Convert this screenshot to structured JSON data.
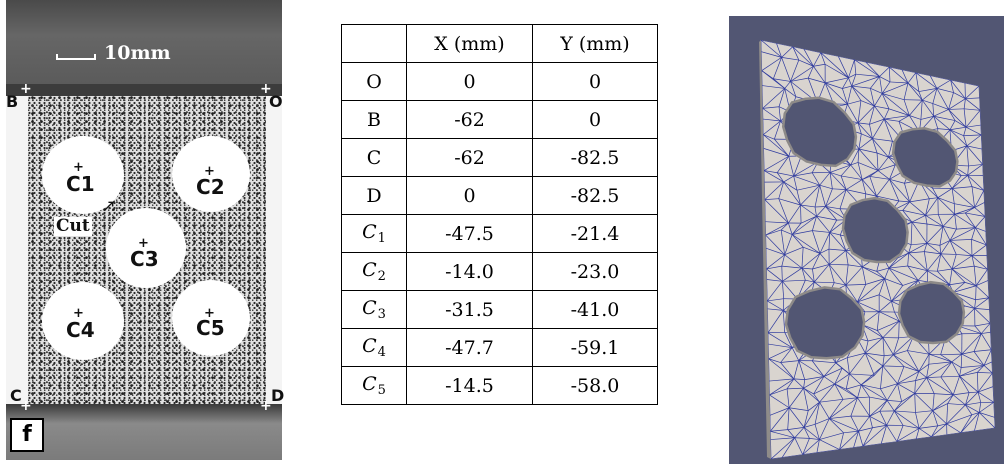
{
  "specimen_photo": {
    "scale_label": "10mm",
    "cut_label": "Cut",
    "panel_label": "f",
    "corners": [
      "B",
      "O",
      "C",
      "D"
    ],
    "holes": [
      {
        "letter": "C",
        "index": "1"
      },
      {
        "letter": "C",
        "index": "2"
      },
      {
        "letter": "C",
        "index": "3"
      },
      {
        "letter": "C",
        "index": "4"
      },
      {
        "letter": "C",
        "index": "5"
      }
    ]
  },
  "coordinate_table": {
    "headers": [
      "",
      "X (mm)",
      "Y (mm)"
    ],
    "rows": [
      {
        "point": "O",
        "index": "",
        "x": "0",
        "y": "0"
      },
      {
        "point": "B",
        "index": "",
        "x": "-62",
        "y": "0"
      },
      {
        "point": "C",
        "index": "",
        "x": "-62",
        "y": "-82.5"
      },
      {
        "point": "D",
        "index": "",
        "x": "0",
        "y": "-82.5"
      },
      {
        "point": "C",
        "index": "1",
        "x": "-47.5",
        "y": "-21.4"
      },
      {
        "point": "C",
        "index": "2",
        "x": "-14.0",
        "y": "-23.0"
      },
      {
        "point": "C",
        "index": "3",
        "x": "-31.5",
        "y": "-41.0"
      },
      {
        "point": "C",
        "index": "4",
        "x": "-47.7",
        "y": "-59.1"
      },
      {
        "point": "C",
        "index": "5",
        "x": "-14.5",
        "y": "-58.0"
      }
    ]
  },
  "mesh_view": {
    "background_color": "#525673",
    "plate_color": "#d9d4cf",
    "edge_color": "#2e3a9e",
    "hole_color": "#525673"
  }
}
